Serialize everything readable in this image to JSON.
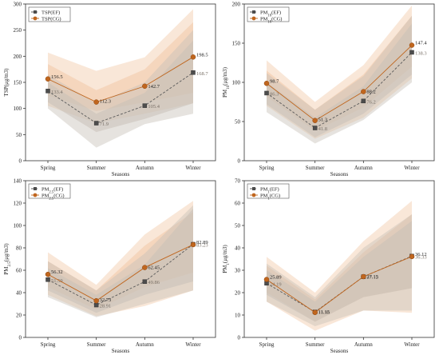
{
  "chart_data": [
    {
      "type": "line",
      "ylabel": "TSP(μg/m3)",
      "xlabel": "Seasons",
      "categories": [
        "Spring",
        "Summer",
        "Autumn",
        "Winter"
      ],
      "ylim": [
        0,
        300
      ],
      "yticks": [
        0,
        50,
        100,
        150,
        200,
        250,
        300
      ],
      "legend_position": "top-left",
      "series": [
        {
          "name": "TSP(EF)",
          "values": [
            133.4,
            71.9,
            105.4,
            168.7
          ],
          "labels": [
            "133.4",
            "71.9",
            "105.4",
            "168.7"
          ],
          "band_inner": [
            [
              112,
              150
            ],
            [
              55,
              90
            ],
            [
              80,
              130
            ],
            [
              110,
              230
            ]
          ],
          "band_outer": [
            [
              100,
              165
            ],
            [
              25,
              110
            ],
            [
              70,
              150
            ],
            [
              90,
              250
            ]
          ],
          "color": "#5a5a5a",
          "band_color": "#c8c1b8",
          "marker": "square"
        },
        {
          "name": "TSP(CG)",
          "values": [
            156.5,
            112.3,
            142.7,
            198.5
          ],
          "labels": [
            "156.5",
            "112.3",
            "142.7",
            "198.5"
          ],
          "band_inner": [
            [
              125,
              185
            ],
            [
              95,
              135
            ],
            [
              112,
              175
            ],
            [
              130,
              265
            ]
          ],
          "band_outer": [
            [
              105,
              207
            ],
            [
              72,
              172
            ],
            [
              90,
              198
            ],
            [
              110,
              290
            ]
          ],
          "color": "#c0661e",
          "band_color": "#f2c9a8",
          "marker": "circle"
        }
      ]
    },
    {
      "type": "line",
      "ylabel": "PM10(μg/m3)",
      "xlabel": "Seasons",
      "categories": [
        "Spring",
        "Summer",
        "Autumn",
        "Winter"
      ],
      "ylim": [
        0,
        200
      ],
      "yticks": [
        0,
        50,
        100,
        150,
        200
      ],
      "legend_position": "top-left",
      "series": [
        {
          "name": "PM10(EF)",
          "values": [
            86.3,
            41.8,
            76.2,
            138.3
          ],
          "labels": [
            "86.3",
            "41.8",
            "76.2",
            "138.3"
          ],
          "band_inner": [
            [
              72,
              100
            ],
            [
              30,
              55
            ],
            [
              60,
              95
            ],
            [
              110,
              175
            ]
          ],
          "band_outer": [
            [
              62,
              112
            ],
            [
              22,
              65
            ],
            [
              52,
              108
            ],
            [
              100,
              185
            ]
          ],
          "color": "#5a5a5a",
          "band_color": "#c8c1b8",
          "marker": "square"
        },
        {
          "name": "PM10(CG)",
          "values": [
            98.7,
            51.3,
            88.2,
            147.4
          ],
          "labels": [
            "98.7",
            "51.3",
            "88.2",
            "147.4"
          ],
          "band_inner": [
            [
              82,
              115
            ],
            [
              38,
              65
            ],
            [
              68,
              110
            ],
            [
              120,
              185
            ]
          ],
          "band_outer": [
            [
              70,
              128
            ],
            [
              28,
              75
            ],
            [
              55,
              122
            ],
            [
              105,
              198
            ]
          ],
          "color": "#c0661e",
          "band_color": "#f2c9a8",
          "marker": "circle"
        }
      ]
    },
    {
      "type": "line",
      "ylabel": "PM2.5(μg/m3)",
      "xlabel": "Seasons",
      "categories": [
        "Spring",
        "Summer",
        "Autumn",
        "Winter"
      ],
      "ylim": [
        0,
        140
      ],
      "yticks": [
        0,
        20,
        40,
        60,
        80,
        100,
        120,
        140
      ],
      "legend_position": "top-left",
      "series": [
        {
          "name": "PM2.5(EF)",
          "values": [
            51.59,
            28.91,
            49.86,
            83.23
          ],
          "labels": [
            "51.59",
            "28.91",
            "49.86",
            "83.23"
          ],
          "band_inner": [
            [
              42,
              62
            ],
            [
              22,
              38
            ],
            [
              38,
              65
            ],
            [
              50,
              115
            ]
          ],
          "band_outer": [
            [
              36,
              68
            ],
            [
              18,
              42
            ],
            [
              30,
              75
            ],
            [
              42,
              118
            ]
          ],
          "color": "#5a5a5a",
          "band_color": "#c8c1b8",
          "marker": "square"
        },
        {
          "name": "PM2.5(CG)",
          "values": [
            56.32,
            32.73,
            62.45,
            82.89
          ],
          "labels": [
            "56.32",
            "32.73",
            "62.45",
            "82.89"
          ],
          "band_inner": [
            [
              45,
              68
            ],
            [
              25,
              42
            ],
            [
              45,
              82
            ],
            [
              58,
              112
            ]
          ],
          "band_outer": [
            [
              38,
              76
            ],
            [
              19,
              47
            ],
            [
              28,
              92
            ],
            [
              42,
              122
            ]
          ],
          "color": "#c0661e",
          "band_color": "#f2c9a8",
          "marker": "circle"
        }
      ]
    },
    {
      "type": "line",
      "ylabel": "PM1(μg/m3)",
      "xlabel": "Seasons",
      "categories": [
        "Spring",
        "Summer",
        "Autumn",
        "Winter"
      ],
      "ylim": [
        0,
        70
      ],
      "yticks": [
        0,
        10,
        20,
        30,
        40,
        50,
        60,
        70
      ],
      "legend_position": "top-left",
      "series": [
        {
          "name": "PM1(EF)",
          "values": [
            24.19,
            11.36,
            27.12,
            36.33
          ],
          "labels": [
            "24.19",
            "11.36",
            "27.12",
            "36.33"
          ],
          "band_inner": [
            [
              19,
              30
            ],
            [
              7,
              16
            ],
            [
              18,
              36
            ],
            [
              22,
              52
            ]
          ],
          "band_outer": [
            [
              16,
              33
            ],
            [
              5,
              18
            ],
            [
              12,
              40
            ],
            [
              12,
              55
            ]
          ],
          "color": "#5a5a5a",
          "band_color": "#c8c1b8",
          "marker": "square"
        },
        {
          "name": "PM1(CG)",
          "values": [
            25.89,
            11.15,
            27.15,
            36.12
          ],
          "labels": [
            "25.89",
            "11.15",
            "27.15",
            "36.12"
          ],
          "band_inner": [
            [
              20,
              32
            ],
            [
              7,
              17
            ],
            [
              18,
              38
            ],
            [
              22,
              55
            ]
          ],
          "band_outer": [
            [
              16,
              36
            ],
            [
              3,
              20
            ],
            [
              12,
              43
            ],
            [
              11,
              61
            ]
          ],
          "color": "#c0661e",
          "band_color": "#f2c9a8",
          "marker": "circle"
        }
      ]
    }
  ]
}
